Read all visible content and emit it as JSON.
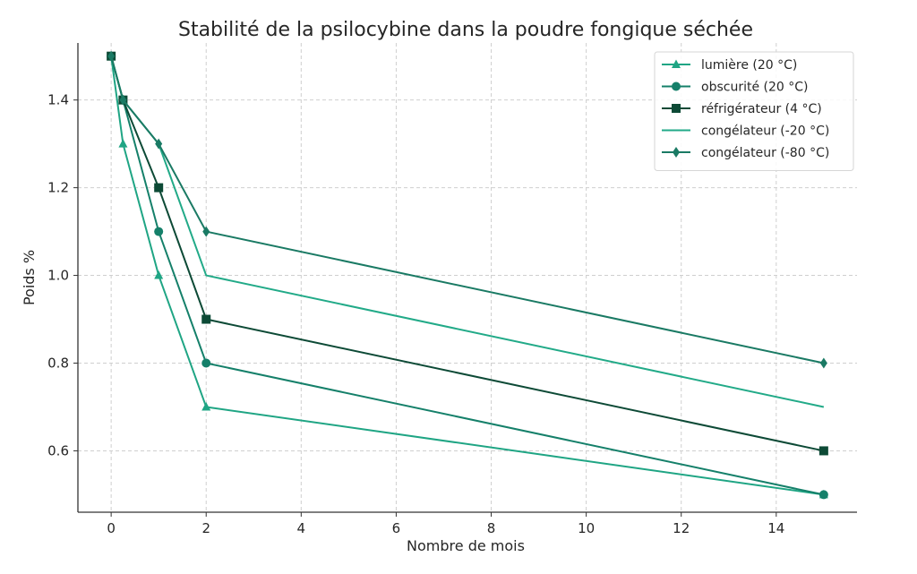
{
  "chart_data": {
    "type": "line",
    "title": "Stabilité de la psilocybine dans la poudre fongique séchée",
    "xlabel": "Nombre de mois",
    "ylabel": "Poids %",
    "xlim": [
      -0.7,
      15.7
    ],
    "ylim": [
      0.46,
      1.53
    ],
    "xticks": [
      0,
      2,
      4,
      6,
      8,
      10,
      12,
      14
    ],
    "yticks": [
      0.6,
      0.8,
      1.0,
      1.2,
      1.4
    ],
    "xtick_labels": [
      "0",
      "2",
      "4",
      "6",
      "8",
      "10",
      "12",
      "14"
    ],
    "ytick_labels": [
      "0.6",
      "0.8",
      "1.0",
      "1.2",
      "1.4"
    ],
    "grid": true,
    "legend_position": "upper right",
    "series": [
      {
        "name": "lumière (20 °C)",
        "marker": "triangle",
        "color": "#1fa584",
        "x": [
          0,
          0.25,
          1,
          2,
          15
        ],
        "values": [
          1.5,
          1.3,
          1.0,
          0.7,
          0.5
        ]
      },
      {
        "name": "obscurité (20 °C)",
        "marker": "circle",
        "color": "#15806a",
        "x": [
          0,
          0.25,
          1,
          2,
          15
        ],
        "values": [
          1.5,
          1.4,
          1.1,
          0.8,
          0.5
        ]
      },
      {
        "name": "réfrigérateur (4 °C)",
        "marker": "square",
        "color": "#0d4a36",
        "x": [
          0,
          0.25,
          1,
          2,
          15
        ],
        "values": [
          1.5,
          1.4,
          1.2,
          0.9,
          0.6
        ]
      },
      {
        "name": "congélateur (-20 °C)",
        "marker": "none",
        "color": "#22aa88",
        "x": [
          0,
          0.25,
          1,
          2,
          15
        ],
        "values": [
          1.5,
          1.4,
          1.3,
          1.0,
          0.7
        ]
      },
      {
        "name": "congélateur (-80 °C)",
        "marker": "diamond",
        "color": "#1a7a64",
        "x": [
          0,
          0.25,
          1,
          2,
          15
        ],
        "values": [
          1.5,
          1.4,
          1.3,
          1.1,
          0.8
        ]
      }
    ]
  }
}
